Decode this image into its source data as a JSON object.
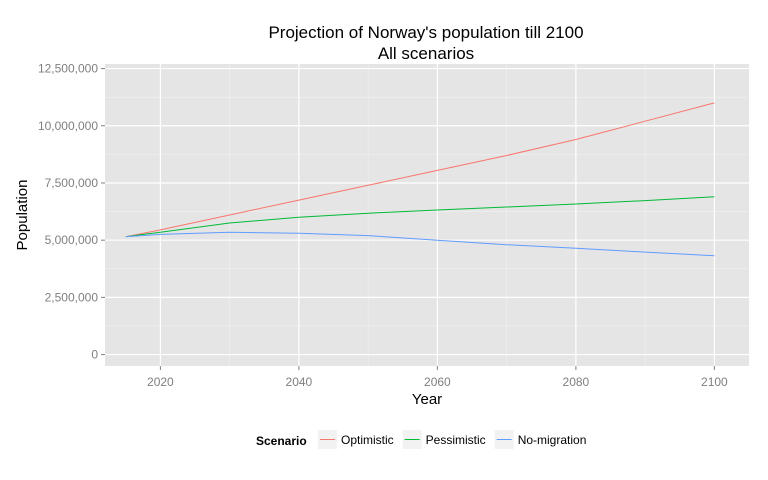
{
  "chart_data": {
    "type": "line",
    "title": "Projection of Norway's population till 2100",
    "subtitle": "All scenarios",
    "xlabel": "Year",
    "ylabel": "Population",
    "xlim": [
      2012,
      2105
    ],
    "ylim": [
      -500000,
      12700000
    ],
    "x_ticks": [
      2020,
      2040,
      2060,
      2080,
      2100
    ],
    "x_tick_labels": [
      "2020",
      "2040",
      "2060",
      "2080",
      "2100"
    ],
    "y_ticks": [
      0,
      2500000,
      5000000,
      7500000,
      10000000,
      12500000
    ],
    "y_tick_labels": [
      "0",
      "2,500,000",
      "5,000,000",
      "7,500,000",
      "10,000,000",
      "12,500,000"
    ],
    "grid": true,
    "legend": {
      "title": "Scenario",
      "position": "bottom"
    },
    "series": [
      {
        "name": "Optimistic",
        "color": "#F8766D",
        "x": [
          2015,
          2020,
          2030,
          2040,
          2050,
          2060,
          2070,
          2080,
          2090,
          2100
        ],
        "values": [
          5150000,
          5450000,
          6100000,
          6750000,
          7400000,
          8050000,
          8700000,
          9400000,
          10200000,
          11000000
        ]
      },
      {
        "name": "Pessimistic",
        "color": "#00BA38",
        "x": [
          2015,
          2020,
          2030,
          2040,
          2050,
          2060,
          2070,
          2080,
          2090,
          2100
        ],
        "values": [
          5150000,
          5350000,
          5750000,
          6000000,
          6180000,
          6320000,
          6450000,
          6580000,
          6730000,
          6900000
        ]
      },
      {
        "name": "No-migration",
        "color": "#619CFF",
        "x": [
          2015,
          2020,
          2030,
          2040,
          2050,
          2060,
          2070,
          2080,
          2090,
          2100
        ],
        "values": [
          5150000,
          5250000,
          5350000,
          5300000,
          5200000,
          5000000,
          4800000,
          4650000,
          4480000,
          4320000
        ]
      }
    ]
  }
}
